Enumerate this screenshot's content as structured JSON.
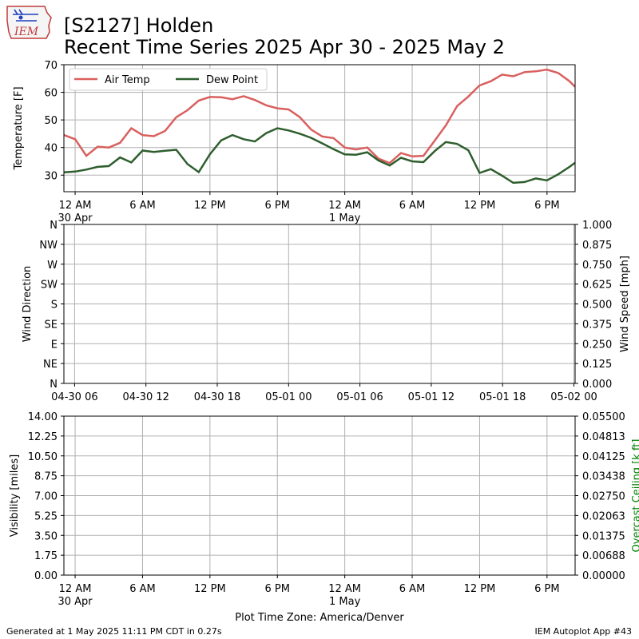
{
  "header": {
    "logo_text": "IEM",
    "title_line1": "[S2127] Holden",
    "title_line2": "Recent Time Series 2025 Apr 30 - 2025 May 2"
  },
  "footer": {
    "generated": "Generated at 1 May 2025 11:11 PM CDT in 0.27s",
    "app": "IEM Autoplot App #43"
  },
  "colors": {
    "air_temp": "#d9605f",
    "dew_point": "#2e5e2e",
    "ceiling_label": "#008000",
    "grid": "#b0b0b0"
  },
  "chart_data": [
    {
      "type": "line",
      "ylabel": "Temperature [F]",
      "ylim": [
        24,
        70
      ],
      "yticks": [
        30,
        40,
        50,
        60,
        70
      ],
      "xlim_hours": [
        -1,
        44.5
      ],
      "xticks": [
        {
          "h": 0,
          "label": "12 AM",
          "sub": "30 Apr"
        },
        {
          "h": 6,
          "label": "6 AM",
          "sub": ""
        },
        {
          "h": 12,
          "label": "12 PM",
          "sub": ""
        },
        {
          "h": 18,
          "label": "6 PM",
          "sub": ""
        },
        {
          "h": 24,
          "label": "12 AM",
          "sub": "1 May"
        },
        {
          "h": 30,
          "label": "6 AM",
          "sub": ""
        },
        {
          "h": 36,
          "label": "12 PM",
          "sub": ""
        },
        {
          "h": 42,
          "label": "6 PM",
          "sub": ""
        }
      ],
      "legend": "top-left",
      "grid": true,
      "x_hours": [
        -1,
        0,
        1,
        2,
        3,
        4,
        5,
        6,
        7,
        8,
        9,
        10,
        11,
        12,
        13,
        14,
        15,
        16,
        17,
        18,
        19,
        20,
        21,
        22,
        23,
        24,
        25,
        26,
        27,
        28,
        29,
        30,
        31,
        32,
        33,
        34,
        35,
        36,
        37,
        38,
        39,
        40,
        41,
        42,
        43,
        44,
        44.5
      ],
      "series": [
        {
          "name": "Air Temp",
          "color_key": "air_temp",
          "values": [
            44.5,
            43,
            37,
            40.3,
            40,
            41.7,
            47,
            44.5,
            44.1,
            46,
            51,
            53.5,
            57,
            58.3,
            58.2,
            57.5,
            58.6,
            57.2,
            55.3,
            54.2,
            53.8,
            51,
            46.5,
            44,
            43.4,
            40,
            39.3,
            40,
            36,
            34.4,
            38,
            36.8,
            37,
            42.5,
            48,
            55,
            58.5,
            62.5,
            64,
            66.4,
            65.8,
            67.3,
            67.6,
            68.2,
            67,
            64,
            62
          ]
        },
        {
          "name": "Dew Point",
          "color_key": "dew_point",
          "values": [
            31,
            31.3,
            32,
            33,
            33.3,
            36.4,
            34.6,
            38.9,
            38.4,
            38.8,
            39.2,
            34,
            31.1,
            37.6,
            42.6,
            44.5,
            43,
            42.2,
            45.2,
            47,
            46.2,
            45,
            43.5,
            41.5,
            39.4,
            37.5,
            37.4,
            38.3,
            35.3,
            33.5,
            36.3,
            35,
            34.7,
            38.7,
            42,
            41.3,
            39,
            30.8,
            32.2,
            29.8,
            27.2,
            27.5,
            28.8,
            28.1,
            30.3,
            33,
            34.5
          ]
        }
      ]
    },
    {
      "type": "line",
      "ylabel": "Wind Direction",
      "yticks": [
        "N",
        "NE",
        "E",
        "SE",
        "S",
        "SW",
        "W",
        "NW",
        "N"
      ],
      "y2label": "Wind Speed [mph]",
      "y2ticks": [
        "0.000",
        "0.125",
        "0.250",
        "0.375",
        "0.500",
        "0.625",
        "0.750",
        "0.875",
        "1.000"
      ],
      "xticks": [
        {
          "h": 6,
          "label": "04-30 06"
        },
        {
          "h": 12,
          "label": "04-30 12"
        },
        {
          "h": 18,
          "label": "04-30 18"
        },
        {
          "h": 24,
          "label": "05-01 00"
        },
        {
          "h": 30,
          "label": "05-01 06"
        },
        {
          "h": 36,
          "label": "05-01 12"
        },
        {
          "h": 42,
          "label": "05-01 18"
        },
        {
          "h": 48,
          "label": "05-02 00"
        }
      ],
      "xlim_hours": [
        5.1,
        48.1
      ],
      "grid": true,
      "series": []
    },
    {
      "type": "line",
      "ylabel": "Visibility [miles]",
      "yticks": [
        "0.00",
        "1.75",
        "3.50",
        "5.25",
        "7.00",
        "8.75",
        "10.50",
        "12.25",
        "14.00"
      ],
      "y2label": "Overcast Ceiling [k ft]",
      "y2ticks": [
        "0.00000",
        "0.00688",
        "0.01375",
        "0.02063",
        "0.02750",
        "0.03438",
        "0.04125",
        "0.04813",
        "0.05500"
      ],
      "xlabel": "Plot Time Zone: America/Denver",
      "xticks": [
        {
          "h": 0,
          "label": "12 AM",
          "sub": "30 Apr"
        },
        {
          "h": 6,
          "label": "6 AM",
          "sub": ""
        },
        {
          "h": 12,
          "label": "12 PM",
          "sub": ""
        },
        {
          "h": 18,
          "label": "6 PM",
          "sub": ""
        },
        {
          "h": 24,
          "label": "12 AM",
          "sub": "1 May"
        },
        {
          "h": 30,
          "label": "6 AM",
          "sub": ""
        },
        {
          "h": 36,
          "label": "12 PM",
          "sub": ""
        },
        {
          "h": 42,
          "label": "6 PM",
          "sub": ""
        }
      ],
      "xlim_hours": [
        -1,
        44.5
      ],
      "grid": true,
      "series": []
    }
  ]
}
